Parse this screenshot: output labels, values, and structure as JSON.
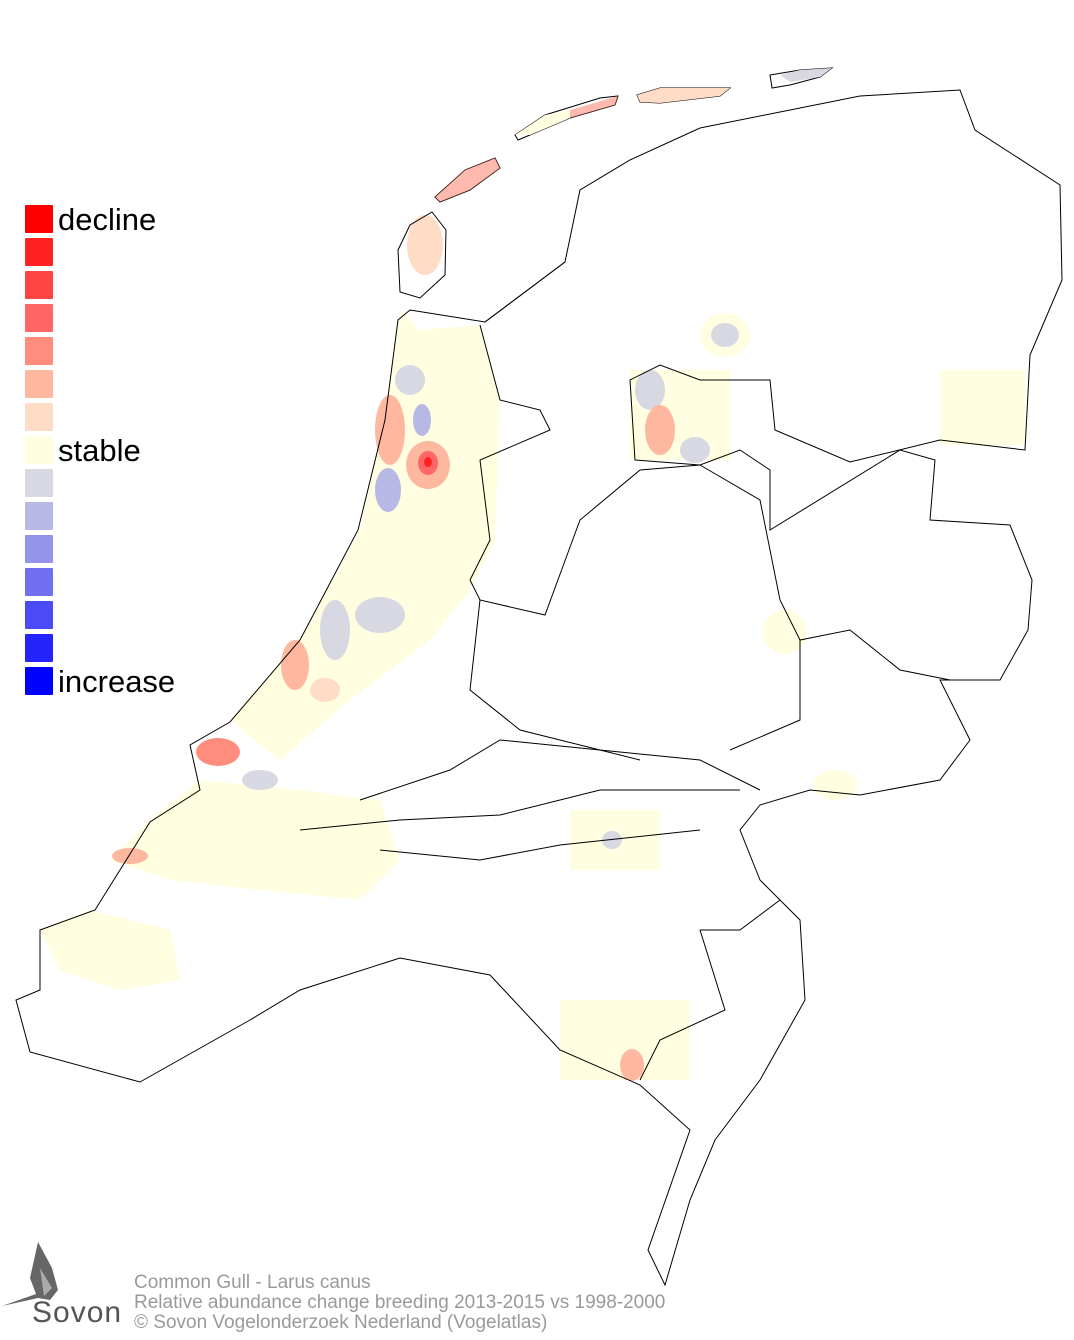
{
  "map": {
    "region": "Netherlands",
    "background": "#ffffff",
    "outline_color": "#000000"
  },
  "legend": {
    "labels": {
      "top": "decline",
      "middle": "stable",
      "bottom": "increase"
    },
    "colors": [
      "#ff0000",
      "#ff2222",
      "#ff4444",
      "#ff6666",
      "#ff8c7c",
      "#ffb8a0",
      "#ffdcc6",
      "#fffee0",
      "#d8d8e2",
      "#b8b8e6",
      "#9494ea",
      "#7070ee",
      "#4a4af6",
      "#2424fa",
      "#0000ff"
    ]
  },
  "footer": {
    "line1": "Common Gull - Larus canus",
    "line2": "Relative abundance change breeding 2013-2015 vs 1998-2000",
    "line3": "© Sovon Vogelonderzoek Nederland (Vogelatlas)"
  },
  "logo": {
    "text": "Sovon",
    "icon": "swallow-logo-icon"
  }
}
